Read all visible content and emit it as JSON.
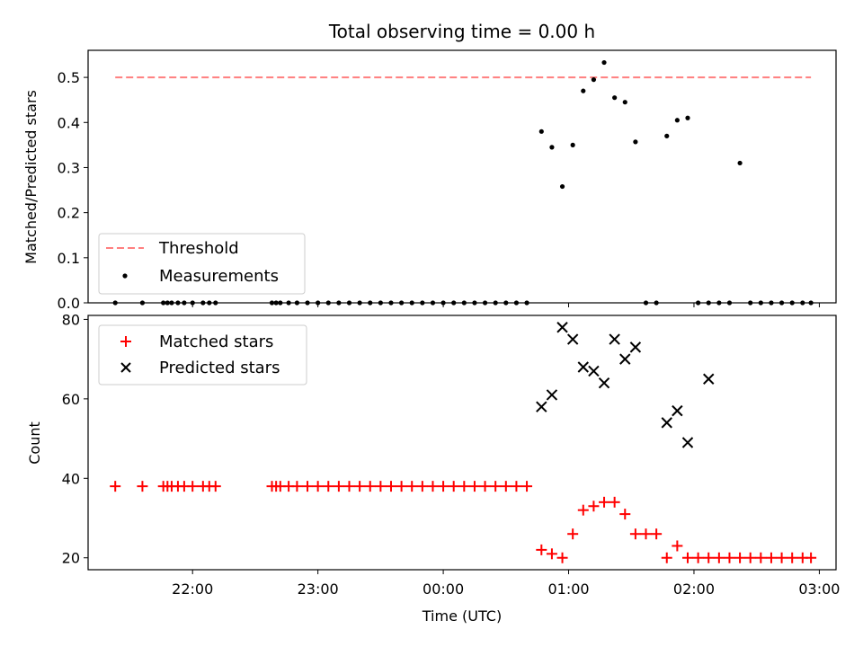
{
  "chart_data": [
    {
      "type": "scatter",
      "title": "Total observing time = 0.00 h",
      "xlabel": "",
      "ylabel": "Matched/Predicted stars",
      "ylim": [
        0,
        0.56
      ],
      "yticks": [
        "0.0",
        "0.1",
        "0.2",
        "0.3",
        "0.4",
        "0.5"
      ],
      "legend_position": "lower-left",
      "threshold": {
        "name": "Threshold",
        "value": 0.5,
        "x_start": "21:23",
        "x_end": "02:56",
        "color": "#ff7f7f"
      },
      "measurements": {
        "name": "Measurements",
        "color": "#000000",
        "x": [
          "21:23",
          "21:36",
          "21:46",
          "21:48",
          "21:50",
          "21:53",
          "21:56",
          "22:00",
          "22:05",
          "22:08",
          "22:11",
          "22:38",
          "22:40",
          "22:42",
          "22:46",
          "22:50",
          "22:55",
          "23:00",
          "23:05",
          "23:10",
          "23:15",
          "23:20",
          "23:25",
          "23:30",
          "23:35",
          "23:40",
          "23:45",
          "23:50",
          "23:55",
          "00:00",
          "00:05",
          "00:10",
          "00:15",
          "00:20",
          "00:25",
          "00:30",
          "00:35",
          "00:40",
          "00:47",
          "00:52",
          "00:57",
          "01:02",
          "01:07",
          "01:12",
          "01:17",
          "01:22",
          "01:27",
          "01:32",
          "01:37",
          "01:42",
          "01:47",
          "01:52",
          "01:57",
          "02:02",
          "02:07",
          "02:12",
          "02:17",
          "02:22",
          "02:27",
          "02:32",
          "02:37",
          "02:42",
          "02:47",
          "02:52",
          "02:56"
        ],
        "y": [
          0,
          0,
          0,
          0,
          0,
          0,
          0,
          0,
          0,
          0,
          0,
          0,
          0,
          0,
          0,
          0,
          0,
          0,
          0,
          0,
          0,
          0,
          0,
          0,
          0,
          0,
          0,
          0,
          0,
          0,
          0,
          0,
          0,
          0,
          0,
          0,
          0,
          0,
          0.38,
          0.345,
          0.258,
          0.35,
          0.47,
          0.495,
          0.533,
          0.455,
          0.445,
          0.357,
          0,
          0,
          0.37,
          0.405,
          0.41,
          0,
          0,
          0,
          0,
          0.31,
          0,
          0,
          0,
          0,
          0,
          0,
          0
        ]
      }
    },
    {
      "type": "scatter",
      "xlabel": "Time (UTC)",
      "ylabel": "Count",
      "ylim": [
        17,
        81
      ],
      "yticks": [
        "20",
        "40",
        "60",
        "80"
      ],
      "xticks": [
        "22:00",
        "23:00",
        "00:00",
        "01:00",
        "02:00",
        "03:00"
      ],
      "x_range": [
        "21:10",
        "03:08"
      ],
      "legend_position": "upper-left",
      "series": [
        {
          "name": "Matched stars",
          "marker": "plus",
          "color": "#ff0000",
          "x": [
            "21:23",
            "21:36",
            "21:46",
            "21:48",
            "21:50",
            "21:53",
            "21:56",
            "22:00",
            "22:05",
            "22:08",
            "22:11",
            "22:38",
            "22:40",
            "22:42",
            "22:46",
            "22:50",
            "22:55",
            "23:00",
            "23:05",
            "23:10",
            "23:15",
            "23:20",
            "23:25",
            "23:30",
            "23:35",
            "23:40",
            "23:45",
            "23:50",
            "23:55",
            "00:00",
            "00:05",
            "00:10",
            "00:15",
            "00:20",
            "00:25",
            "00:30",
            "00:35",
            "00:40",
            "00:47",
            "00:52",
            "00:57",
            "01:02",
            "01:07",
            "01:12",
            "01:17",
            "01:22",
            "01:27",
            "01:32",
            "01:37",
            "01:42",
            "01:47",
            "01:52",
            "01:57",
            "02:02",
            "02:07",
            "02:12",
            "02:17",
            "02:22",
            "02:27",
            "02:32",
            "02:37",
            "02:42",
            "02:47",
            "02:52",
            "02:56"
          ],
          "y": [
            38,
            38,
            38,
            38,
            38,
            38,
            38,
            38,
            38,
            38,
            38,
            38,
            38,
            38,
            38,
            38,
            38,
            38,
            38,
            38,
            38,
            38,
            38,
            38,
            38,
            38,
            38,
            38,
            38,
            38,
            38,
            38,
            38,
            38,
            38,
            38,
            38,
            38,
            22,
            21,
            20,
            26,
            32,
            33,
            34,
            34,
            31,
            26,
            26,
            26,
            20,
            23,
            20,
            20,
            20,
            20,
            20,
            20,
            20,
            20,
            20,
            20,
            20,
            20,
            20
          ]
        },
        {
          "name": "Predicted stars",
          "marker": "x",
          "color": "#000000",
          "x": [
            "00:47",
            "00:52",
            "00:57",
            "01:02",
            "01:07",
            "01:12",
            "01:17",
            "01:22",
            "01:27",
            "01:32",
            "01:47",
            "01:52",
            "01:57",
            "02:07"
          ],
          "y": [
            58,
            61,
            78,
            75,
            68,
            67,
            64,
            75,
            70,
            73,
            54,
            57,
            49,
            65
          ]
        }
      ]
    }
  ]
}
